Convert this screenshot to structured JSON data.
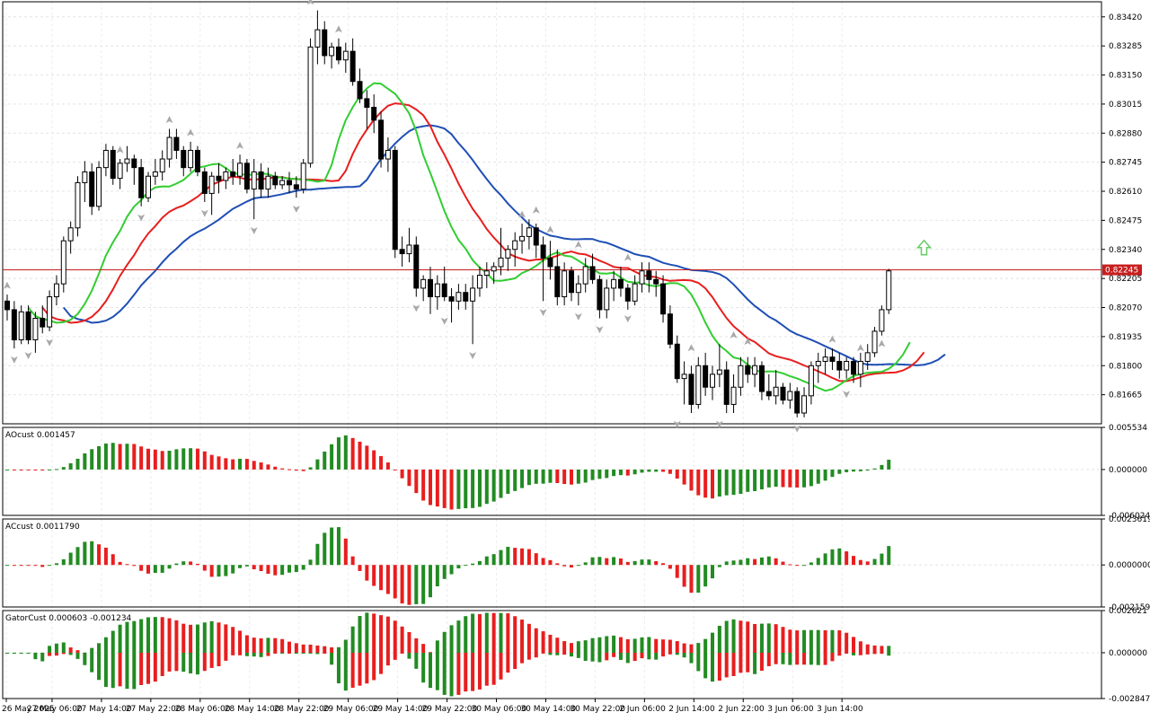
{
  "symbol_price_label": "0.82245",
  "colors": {
    "bull_bar": "#228b22",
    "bear_bar": "#e81e1e",
    "alligator_lips": "#32cd32",
    "alligator_teeth": "#e81e1e",
    "alligator_jaw": "#1f4fb5",
    "price_line": "#c81e1e",
    "fractal": "#a9a9a9",
    "signal_arrow": "#66cc66"
  },
  "time_axis": [
    "26 May 2025",
    "27 May 06:00",
    "27 May 14:00",
    "27 May 22:00",
    "28 May 06:00",
    "28 May 14:00",
    "28 May 22:00",
    "29 May 06:00",
    "29 May 14:00",
    "29 May 22:00",
    "30 May 06:00",
    "30 May 14:00",
    "30 May 22:00",
    "2 Jun 06:00",
    "2 Jun 14:00",
    "2 Jun 22:00",
    "3 Jun 06:00",
    "3 Jun 14:00"
  ],
  "panes": {
    "main": {
      "ticks": [
        "0.83420",
        "0.83285",
        "0.83150",
        "0.83015",
        "0.82880",
        "0.82745",
        "0.82610",
        "0.82475",
        "0.82340",
        "0.82205",
        "0.82070",
        "0.81935",
        "0.81800",
        "0.81665"
      ],
      "range": [
        0.8153,
        0.8349
      ]
    },
    "ao": {
      "label": "AOcust 0.001457",
      "ticks": [
        "0.005534",
        "0.000000",
        "-0.006024"
      ],
      "range": [
        -0.006024,
        0.005534
      ]
    },
    "ac": {
      "label": "ACcust 0.0011790",
      "ticks": [
        "0.0023619",
        "0.0000000",
        "-0.0021594"
      ],
      "range": [
        -0.0021594,
        0.0023619
      ]
    },
    "gator": {
      "label": "GatorCust 0.000603 -0.001234",
      "ticks": [
        "0.002621",
        "0.000000",
        "-0.002847"
      ],
      "range": [
        -0.002847,
        0.002621
      ]
    }
  },
  "chart_data": {
    "type": "candlestick",
    "last_price": 0.82245,
    "candles": [
      [
        0.821,
        0.8213,
        0.8201,
        0.8206
      ],
      [
        0.8206,
        0.821,
        0.8188,
        0.8192
      ],
      [
        0.8192,
        0.8208,
        0.819,
        0.8205
      ],
      [
        0.8205,
        0.8208,
        0.819,
        0.8192
      ],
      [
        0.8192,
        0.8205,
        0.8186,
        0.8202
      ],
      [
        0.8202,
        0.8208,
        0.8195,
        0.8198
      ],
      [
        0.8198,
        0.8215,
        0.8196,
        0.8212
      ],
      [
        0.8212,
        0.8222,
        0.8208,
        0.8218
      ],
      [
        0.8218,
        0.824,
        0.8214,
        0.8238
      ],
      [
        0.8238,
        0.8247,
        0.8232,
        0.8244
      ],
      [
        0.8244,
        0.8268,
        0.824,
        0.8265
      ],
      [
        0.8265,
        0.8275,
        0.8256,
        0.827
      ],
      [
        0.827,
        0.8274,
        0.825,
        0.8254
      ],
      [
        0.8254,
        0.8275,
        0.8252,
        0.8272
      ],
      [
        0.8272,
        0.8283,
        0.8268,
        0.828
      ],
      [
        0.828,
        0.8282,
        0.8264,
        0.8267
      ],
      [
        0.8267,
        0.8276,
        0.8262,
        0.8274
      ],
      [
        0.8274,
        0.8282,
        0.827,
        0.8276
      ],
      [
        0.8276,
        0.8278,
        0.8264,
        0.8272
      ],
      [
        0.8272,
        0.8276,
        0.8254,
        0.8258
      ],
      [
        0.8258,
        0.827,
        0.8256,
        0.8268
      ],
      [
        0.8268,
        0.8276,
        0.8264,
        0.827
      ],
      [
        0.827,
        0.828,
        0.8266,
        0.8276
      ],
      [
        0.8276,
        0.829,
        0.8272,
        0.8286
      ],
      [
        0.8286,
        0.829,
        0.8276,
        0.828
      ],
      [
        0.828,
        0.8282,
        0.8268,
        0.8272
      ],
      [
        0.8272,
        0.8284,
        0.827,
        0.828
      ],
      [
        0.828,
        0.8282,
        0.8268,
        0.827
      ],
      [
        0.827,
        0.8272,
        0.8256,
        0.826
      ],
      [
        0.826,
        0.827,
        0.825,
        0.8268
      ],
      [
        0.8268,
        0.8274,
        0.826,
        0.8266
      ],
      [
        0.8266,
        0.8272,
        0.8262,
        0.827
      ],
      [
        0.827,
        0.8276,
        0.8264,
        0.8268
      ],
      [
        0.8268,
        0.8278,
        0.8264,
        0.8274
      ],
      [
        0.8274,
        0.8276,
        0.826,
        0.8262
      ],
      [
        0.8262,
        0.8276,
        0.8248,
        0.827
      ],
      [
        0.827,
        0.8274,
        0.8258,
        0.8262
      ],
      [
        0.8262,
        0.8272,
        0.8258,
        0.8268
      ],
      [
        0.8268,
        0.827,
        0.8262,
        0.8264
      ],
      [
        0.8264,
        0.8268,
        0.8262,
        0.8266
      ],
      [
        0.8266,
        0.827,
        0.826,
        0.8264
      ],
      [
        0.8264,
        0.8268,
        0.8258,
        0.8262
      ],
      [
        0.8262,
        0.8276,
        0.826,
        0.8274
      ],
      [
        0.8274,
        0.8332,
        0.8272,
        0.8328
      ],
      [
        0.8328,
        0.8345,
        0.832,
        0.8336
      ],
      [
        0.8336,
        0.834,
        0.832,
        0.8324
      ],
      [
        0.8324,
        0.833,
        0.8318,
        0.8328
      ],
      [
        0.8328,
        0.8332,
        0.832,
        0.8322
      ],
      [
        0.8322,
        0.833,
        0.8316,
        0.8326
      ],
      [
        0.8326,
        0.8332,
        0.831,
        0.8312
      ],
      [
        0.8312,
        0.8318,
        0.8302,
        0.8304
      ],
      [
        0.8304,
        0.8308,
        0.829,
        0.83
      ],
      [
        0.83,
        0.8306,
        0.8288,
        0.8294
      ],
      [
        0.8294,
        0.8298,
        0.8272,
        0.8276
      ],
      [
        0.8276,
        0.8286,
        0.827,
        0.828
      ],
      [
        0.828,
        0.8282,
        0.823,
        0.8234
      ],
      [
        0.8234,
        0.824,
        0.8226,
        0.8232
      ],
      [
        0.8232,
        0.8244,
        0.8228,
        0.8236
      ],
      [
        0.8236,
        0.824,
        0.8212,
        0.8216
      ],
      [
        0.8216,
        0.8222,
        0.821,
        0.822
      ],
      [
        0.822,
        0.8226,
        0.8204,
        0.8212
      ],
      [
        0.8212,
        0.8222,
        0.8206,
        0.8218
      ],
      [
        0.8218,
        0.8226,
        0.821,
        0.8212
      ],
      [
        0.8212,
        0.8216,
        0.82,
        0.821
      ],
      [
        0.821,
        0.8218,
        0.8206,
        0.8214
      ],
      [
        0.8214,
        0.8218,
        0.8206,
        0.821
      ],
      [
        0.821,
        0.8222,
        0.819,
        0.8216
      ],
      [
        0.8216,
        0.8226,
        0.8212,
        0.8222
      ],
      [
        0.8222,
        0.8228,
        0.8216,
        0.8224
      ],
      [
        0.8224,
        0.8228,
        0.8218,
        0.8226
      ],
      [
        0.8226,
        0.8244,
        0.8222,
        0.823
      ],
      [
        0.823,
        0.8236,
        0.8224,
        0.8234
      ],
      [
        0.8234,
        0.8242,
        0.8226,
        0.8238
      ],
      [
        0.8238,
        0.8246,
        0.8232,
        0.824
      ],
      [
        0.824,
        0.8248,
        0.8234,
        0.8244
      ],
      [
        0.8244,
        0.8246,
        0.823,
        0.8236
      ],
      [
        0.8236,
        0.824,
        0.821,
        0.823
      ],
      [
        0.823,
        0.8238,
        0.822,
        0.8226
      ],
      [
        0.8226,
        0.8234,
        0.8208,
        0.8212
      ],
      [
        0.8212,
        0.8228,
        0.8208,
        0.8224
      ],
      [
        0.8224,
        0.8226,
        0.821,
        0.8214
      ],
      [
        0.8214,
        0.8222,
        0.8208,
        0.8218
      ],
      [
        0.8218,
        0.823,
        0.8214,
        0.8226
      ],
      [
        0.8226,
        0.8232,
        0.8218,
        0.822
      ],
      [
        0.822,
        0.8222,
        0.8202,
        0.8206
      ],
      [
        0.8206,
        0.822,
        0.8202,
        0.8216
      ],
      [
        0.8216,
        0.8224,
        0.821,
        0.822
      ],
      [
        0.822,
        0.8226,
        0.8212,
        0.8216
      ],
      [
        0.8216,
        0.8218,
        0.8206,
        0.821
      ],
      [
        0.821,
        0.8222,
        0.8208,
        0.8218
      ],
      [
        0.8218,
        0.8228,
        0.8214,
        0.8224
      ],
      [
        0.8224,
        0.8228,
        0.8214,
        0.822
      ],
      [
        0.822,
        0.8224,
        0.8212,
        0.8218
      ],
      [
        0.8218,
        0.8222,
        0.82,
        0.8204
      ],
      [
        0.8204,
        0.8208,
        0.8188,
        0.819
      ],
      [
        0.819,
        0.8194,
        0.8172,
        0.8174
      ],
      [
        0.8174,
        0.8182,
        0.8162,
        0.8176
      ],
      [
        0.8176,
        0.818,
        0.8158,
        0.8162
      ],
      [
        0.8162,
        0.8184,
        0.816,
        0.818
      ],
      [
        0.818,
        0.8186,
        0.8166,
        0.817
      ],
      [
        0.817,
        0.818,
        0.8164,
        0.8176
      ],
      [
        0.8176,
        0.819,
        0.817,
        0.8178
      ],
      [
        0.8178,
        0.8182,
        0.8158,
        0.8162
      ],
      [
        0.8162,
        0.8176,
        0.8158,
        0.817
      ],
      [
        0.817,
        0.8184,
        0.8166,
        0.818
      ],
      [
        0.818,
        0.8184,
        0.8172,
        0.8176
      ],
      [
        0.8176,
        0.8184,
        0.817,
        0.818
      ],
      [
        0.818,
        0.8182,
        0.8164,
        0.8168
      ],
      [
        0.8168,
        0.8176,
        0.8164,
        0.8166
      ],
      [
        0.8166,
        0.8178,
        0.8162,
        0.817
      ],
      [
        0.817,
        0.8172,
        0.8162,
        0.8164
      ],
      [
        0.8164,
        0.8172,
        0.816,
        0.8168
      ],
      [
        0.8168,
        0.817,
        0.8156,
        0.8158
      ],
      [
        0.8158,
        0.817,
        0.8156,
        0.8166
      ],
      [
        0.8166,
        0.8182,
        0.8162,
        0.818
      ],
      [
        0.818,
        0.8186,
        0.8172,
        0.8182
      ],
      [
        0.8182,
        0.8188,
        0.8176,
        0.8184
      ],
      [
        0.8184,
        0.8188,
        0.8178,
        0.8182
      ],
      [
        0.8182,
        0.8186,
        0.8174,
        0.8178
      ],
      [
        0.8178,
        0.8184,
        0.8174,
        0.8182
      ],
      [
        0.8182,
        0.8184,
        0.8172,
        0.8176
      ],
      [
        0.8176,
        0.8186,
        0.817,
        0.8182
      ],
      [
        0.8182,
        0.819,
        0.8178,
        0.8186
      ],
      [
        0.8186,
        0.8198,
        0.8184,
        0.8196
      ],
      [
        0.8196,
        0.8208,
        0.8194,
        0.8206
      ],
      [
        0.8206,
        0.8225,
        0.8204,
        0.8224
      ]
    ],
    "fractals_up": [
      [
        0,
        0.8214
      ],
      [
        16,
        0.8277
      ],
      [
        23,
        0.8291
      ],
      [
        26,
        0.8285
      ],
      [
        33,
        0.8279
      ],
      [
        43,
        0.8346
      ],
      [
        47,
        0.8333
      ],
      [
        73,
        0.8247
      ],
      [
        75,
        0.8249
      ],
      [
        77,
        0.824
      ],
      [
        81,
        0.8233
      ],
      [
        88,
        0.8227
      ],
      [
        97,
        0.8185
      ],
      [
        103,
        0.8191
      ],
      [
        105,
        0.8188
      ],
      [
        117,
        0.8189
      ],
      [
        121,
        0.8185
      ],
      [
        124,
        0.8187
      ]
    ],
    "fractals_down": [
      [
        1,
        0.8186
      ],
      [
        3,
        0.8188
      ],
      [
        6,
        0.8194
      ],
      [
        19,
        0.8252
      ],
      [
        28,
        0.8254
      ],
      [
        35,
        0.8246
      ],
      [
        41,
        0.8256
      ],
      [
        58,
        0.821
      ],
      [
        62,
        0.8204
      ],
      [
        66,
        0.8188
      ],
      [
        76,
        0.8208
      ],
      [
        81,
        0.8206
      ],
      [
        84,
        0.82
      ],
      [
        88,
        0.8205
      ],
      [
        95,
        0.8156
      ],
      [
        101,
        0.8156
      ],
      [
        112,
        0.8154
      ],
      [
        119,
        0.817
      ]
    ],
    "up_arrow": [
      130,
      0.8234
    ]
  }
}
